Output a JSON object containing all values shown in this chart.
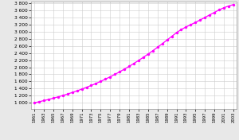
{
  "years": [
    1961,
    1962,
    1963,
    1964,
    1965,
    1966,
    1967,
    1968,
    1969,
    1970,
    1971,
    1972,
    1973,
    1974,
    1975,
    1976,
    1977,
    1978,
    1979,
    1980,
    1981,
    1982,
    1983,
    1984,
    1985,
    1986,
    1987,
    1988,
    1989,
    1990,
    1991,
    1992,
    1993,
    1994,
    1995,
    1996,
    1997,
    1998,
    1999,
    2000,
    2001,
    2002,
    2003
  ],
  "population": [
    1000,
    1030,
    1062,
    1095,
    1130,
    1167,
    1206,
    1247,
    1290,
    1336,
    1384,
    1435,
    1488,
    1544,
    1603,
    1665,
    1731,
    1799,
    1871,
    1946,
    2024,
    2105,
    2190,
    2278,
    2369,
    2463,
    2561,
    2661,
    2763,
    2867,
    2971,
    3059,
    3130,
    3195,
    3260,
    3328,
    3399,
    3470,
    3540,
    3610,
    3672,
    3720,
    3760
  ],
  "line_color": "#ff00ff",
  "marker_color": "#ff00ff",
  "bg_color": "#e8e8e8",
  "plot_bg_color": "#ffffff",
  "grid_color": "#cccccc",
  "ylim": [
    820,
    3850
  ],
  "yticks": [
    1000,
    1200,
    1400,
    1600,
    1800,
    2000,
    2200,
    2400,
    2600,
    2800,
    3000,
    3200,
    3400,
    3600,
    3800
  ],
  "xtick_years": [
    1961,
    1963,
    1965,
    1967,
    1969,
    1971,
    1973,
    1975,
    1977,
    1979,
    1981,
    1983,
    1985,
    1987,
    1989,
    1991,
    1993,
    1995,
    1997,
    1999,
    2001,
    2003
  ]
}
